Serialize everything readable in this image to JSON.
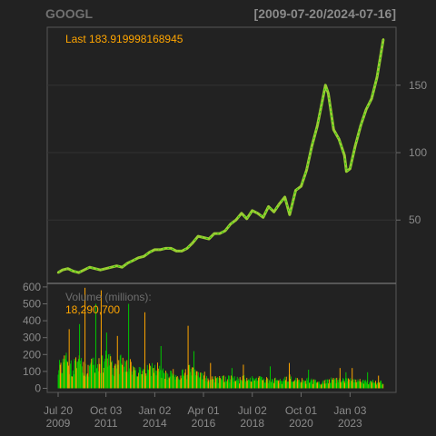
{
  "header": {
    "symbol": "GOOGL",
    "date_range": "[2009-07-20/2024-07-16]"
  },
  "price_panel": {
    "last_label": "Last 183.919998168945",
    "last_color": "#ffa500",
    "series_color": "#9acd32",
    "highlight_color": "#00c800"
  },
  "volume_panel": {
    "label": "Volume (millions):",
    "value": "18,290,700",
    "up_color": "#00c800",
    "down_color": "#ffa500"
  },
  "chart_data": [
    {
      "type": "line",
      "title": "GOOGL",
      "subtitle": "[2009-07-20/2024-07-16]",
      "x_range": [
        "2009-07-20",
        "2024-07-16"
      ],
      "ylim": [
        3,
        193
      ],
      "y_ticks": [
        50,
        100,
        150
      ],
      "y_axis_side": "right",
      "grid": true,
      "x": [
        "2009-07-20",
        "2009-10-01",
        "2010-01-01",
        "2010-04-01",
        "2010-07-01",
        "2010-10-01",
        "2011-01-01",
        "2011-04-01",
        "2011-07-01",
        "2011-10-01",
        "2012-01-01",
        "2012-04-01",
        "2012-07-01",
        "2012-10-01",
        "2013-01-01",
        "2013-04-01",
        "2013-07-01",
        "2013-10-01",
        "2014-01-01",
        "2014-04-01",
        "2014-07-01",
        "2014-10-01",
        "2015-01-01",
        "2015-04-01",
        "2015-07-01",
        "2015-10-01",
        "2016-01-01",
        "2016-04-01",
        "2016-07-01",
        "2016-10-01",
        "2017-01-01",
        "2017-04-01",
        "2017-07-01",
        "2017-10-01",
        "2018-01-01",
        "2018-04-01",
        "2018-07-01",
        "2018-10-01",
        "2019-01-01",
        "2019-04-01",
        "2019-07-01",
        "2019-10-01",
        "2020-01-01",
        "2020-03-23",
        "2020-07-01",
        "2020-10-01",
        "2021-01-01",
        "2021-04-01",
        "2021-07-01",
        "2021-11-15",
        "2022-01-01",
        "2022-04-01",
        "2022-07-01",
        "2022-10-01",
        "2022-11-03",
        "2023-01-01",
        "2023-04-01",
        "2023-07-01",
        "2023-10-01",
        "2024-01-01",
        "2024-04-01",
        "2024-07-16"
      ],
      "values": [
        11,
        13,
        14,
        12,
        11,
        13,
        15,
        14,
        13,
        14,
        15,
        16,
        15,
        18,
        20,
        22,
        23,
        26,
        28,
        28,
        29,
        29,
        27,
        27,
        29,
        33,
        38,
        37,
        36,
        40,
        40,
        42,
        47,
        50,
        55,
        51,
        57,
        55,
        52,
        60,
        56,
        62,
        67,
        54,
        72,
        75,
        87,
        105,
        120,
        150,
        144,
        117,
        110,
        98,
        86,
        88,
        105,
        120,
        132,
        140,
        156,
        184
      ]
    },
    {
      "type": "bar",
      "title": "Volume (millions):",
      "subtitle": "18,290,700",
      "x_range": [
        "2009-07-20",
        "2024-07-16"
      ],
      "ylim": [
        0,
        600
      ],
      "y_ticks": [
        0,
        100,
        200,
        300,
        400,
        500,
        600
      ],
      "y_axis_side": "left",
      "x_ticks": [
        "2009-07-20",
        "2011-10-03",
        "2014-01-02",
        "2016-04-01",
        "2018-07-02",
        "2020-10-01",
        "2023-01-03"
      ],
      "x_tick_labels": [
        [
          "Jul 20",
          "2009"
        ],
        [
          "Oct 03",
          "2011"
        ],
        [
          "Jan 02",
          "2014"
        ],
        [
          "Apr 01",
          "2016"
        ],
        [
          "Jul 02",
          "2018"
        ],
        [
          "Oct 01",
          "2020"
        ],
        [
          "Jan 03",
          "2023"
        ]
      ],
      "series_x": [
        "2009-09-01",
        "2009-12-01",
        "2010-03-01",
        "2010-06-01",
        "2010-09-01",
        "2010-12-01",
        "2011-03-01",
        "2011-06-01",
        "2011-09-01",
        "2011-12-01",
        "2012-03-01",
        "2012-06-01",
        "2012-09-01",
        "2012-12-01",
        "2013-03-01",
        "2013-06-01",
        "2013-09-01",
        "2013-12-01",
        "2014-03-01",
        "2014-06-01",
        "2014-09-01",
        "2014-12-01",
        "2015-03-01",
        "2015-06-01",
        "2015-09-01",
        "2015-12-01",
        "2016-03-01",
        "2016-06-01",
        "2016-09-01",
        "2016-12-01",
        "2017-03-01",
        "2017-06-01",
        "2017-09-01",
        "2017-12-01",
        "2018-03-01",
        "2018-06-01",
        "2018-09-01",
        "2018-12-01",
        "2019-03-01",
        "2019-06-01",
        "2019-09-01",
        "2019-12-01",
        "2020-03-01",
        "2020-06-01",
        "2020-09-01",
        "2020-12-01",
        "2021-03-01",
        "2021-06-01",
        "2021-09-01",
        "2021-12-01",
        "2022-03-01",
        "2022-06-01",
        "2022-09-01",
        "2022-12-01",
        "2023-03-01",
        "2023-06-01",
        "2023-09-01",
        "2023-12-01",
        "2024-03-01",
        "2024-06-01"
      ],
      "volumes": [
        130,
        160,
        120,
        150,
        140,
        110,
        150,
        135,
        160,
        180,
        120,
        150,
        140,
        130,
        120,
        110,
        120,
        110,
        120,
        100,
        90,
        85,
        80,
        90,
        110,
        80,
        80,
        70,
        60,
        55,
        60,
        60,
        55,
        50,
        60,
        55,
        55,
        60,
        50,
        50,
        45,
        45,
        70,
        45,
        50,
        45,
        50,
        40,
        35,
        40,
        50,
        50,
        45,
        45,
        50,
        45,
        40,
        40,
        40,
        35
      ],
      "spikes": [
        {
          "x": "2010-01-22",
          "value": 350
        },
        {
          "x": "2010-07-16",
          "value": 380
        },
        {
          "x": "2010-10-15",
          "value": 595
        },
        {
          "x": "2011-04-15",
          "value": 500
        },
        {
          "x": "2011-07-15",
          "value": 580
        },
        {
          "x": "2011-10-14",
          "value": 330
        },
        {
          "x": "2012-04-13",
          "value": 310
        },
        {
          "x": "2012-10-19",
          "value": 500
        },
        {
          "x": "2013-07-19",
          "value": 450
        },
        {
          "x": "2014-04-17",
          "value": 250
        },
        {
          "x": "2015-07-17",
          "value": 370
        },
        {
          "x": "2015-10-23",
          "value": 220
        },
        {
          "x": "2016-07-29",
          "value": 150
        },
        {
          "x": "2017-07-25",
          "value": 120
        },
        {
          "x": "2018-02-02",
          "value": 140
        },
        {
          "x": "2019-04-30",
          "value": 130
        },
        {
          "x": "2020-03-16",
          "value": 150
        },
        {
          "x": "2021-02-03",
          "value": 110
        },
        {
          "x": "2022-07-18",
          "value": 120
        },
        {
          "x": "2022-10-26",
          "value": 95
        },
        {
          "x": "2023-02-08",
          "value": 120
        },
        {
          "x": "2023-10-25",
          "value": 95
        },
        {
          "x": "2024-04-26",
          "value": 75
        }
      ]
    }
  ]
}
